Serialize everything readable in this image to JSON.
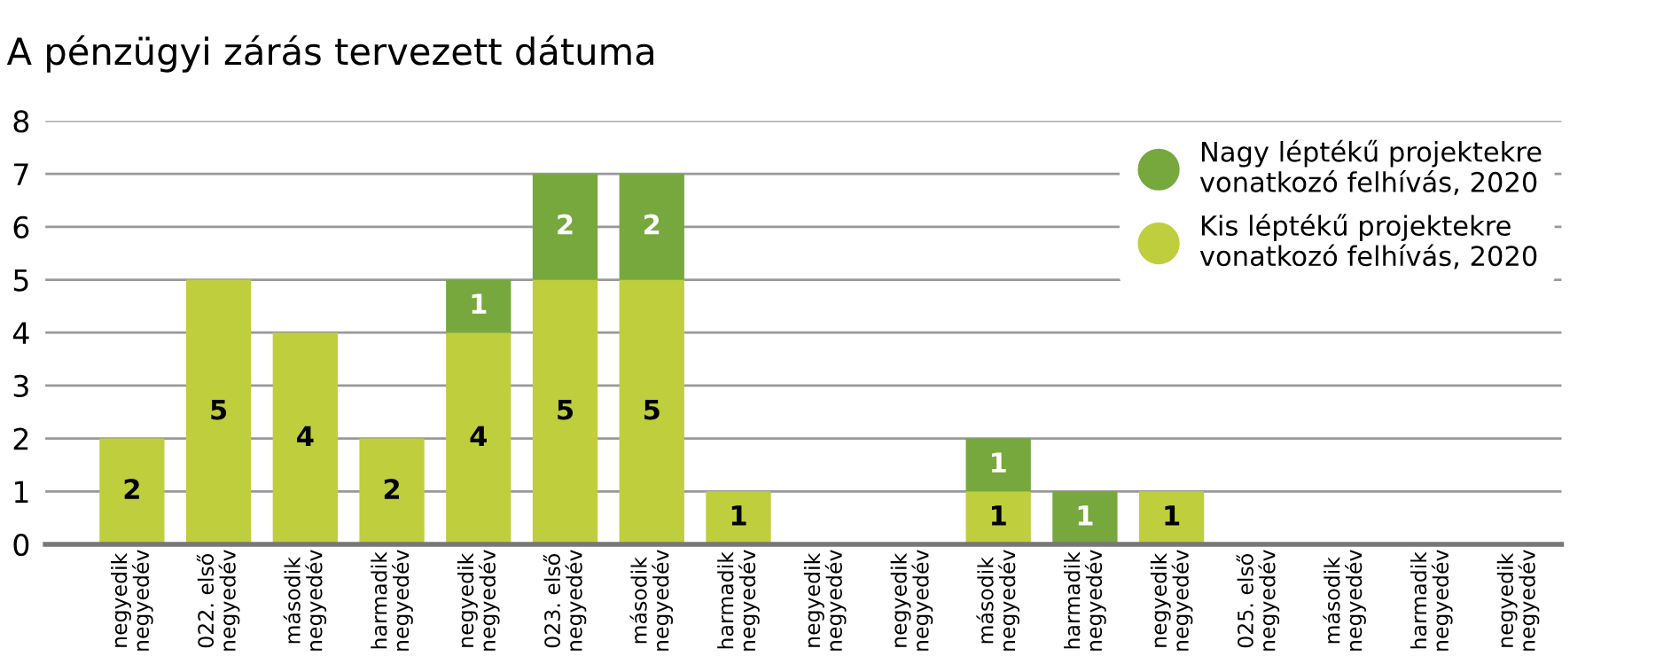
{
  "chart_data": {
    "type": "bar",
    "title": "A pénzügyi zárás tervezett dátuma",
    "categories": [
      "negyedik\nnegyedév",
      "022. első\nnegyedév",
      "második\nnegyedév",
      "harmadik\nnegyedév",
      "negyedik\nnegyedév",
      "023. első\nnegyedév",
      "második\nnegyedév",
      "harmadik\nnegyedév",
      "negyedik\nnegyedév",
      "negyedik\nnegyedév",
      "második\nnegyedév",
      "harmadik\nnegyedév",
      "negyedik\nnegyedév",
      "025. első\nnegyedév",
      "második\nnegyedév",
      "harmadik\nnegyedév",
      "negyedik\nnegyedév"
    ],
    "series": [
      {
        "name": "Kis léptékű projektekre\nvonatkozó felhívás, 2020",
        "color": "#bfce3c",
        "values": [
          2,
          5,
          4,
          2,
          4,
          5,
          5,
          1,
          null,
          null,
          1,
          null,
          1,
          null,
          null,
          null,
          null
        ]
      },
      {
        "name": "Nagy léptékű projektekre\nvonatkozó felhívás, 2020",
        "color": "#76a83d",
        "values": [
          null,
          null,
          null,
          null,
          1,
          2,
          2,
          null,
          null,
          null,
          1,
          1,
          null,
          null,
          null,
          null,
          null
        ]
      }
    ],
    "stacked": true,
    "data_labels": true,
    "ylim": [
      0,
      8
    ],
    "yticks": [
      0,
      1,
      2,
      3,
      4,
      5,
      6,
      7,
      8
    ],
    "grid": "y",
    "legend": "top right"
  }
}
